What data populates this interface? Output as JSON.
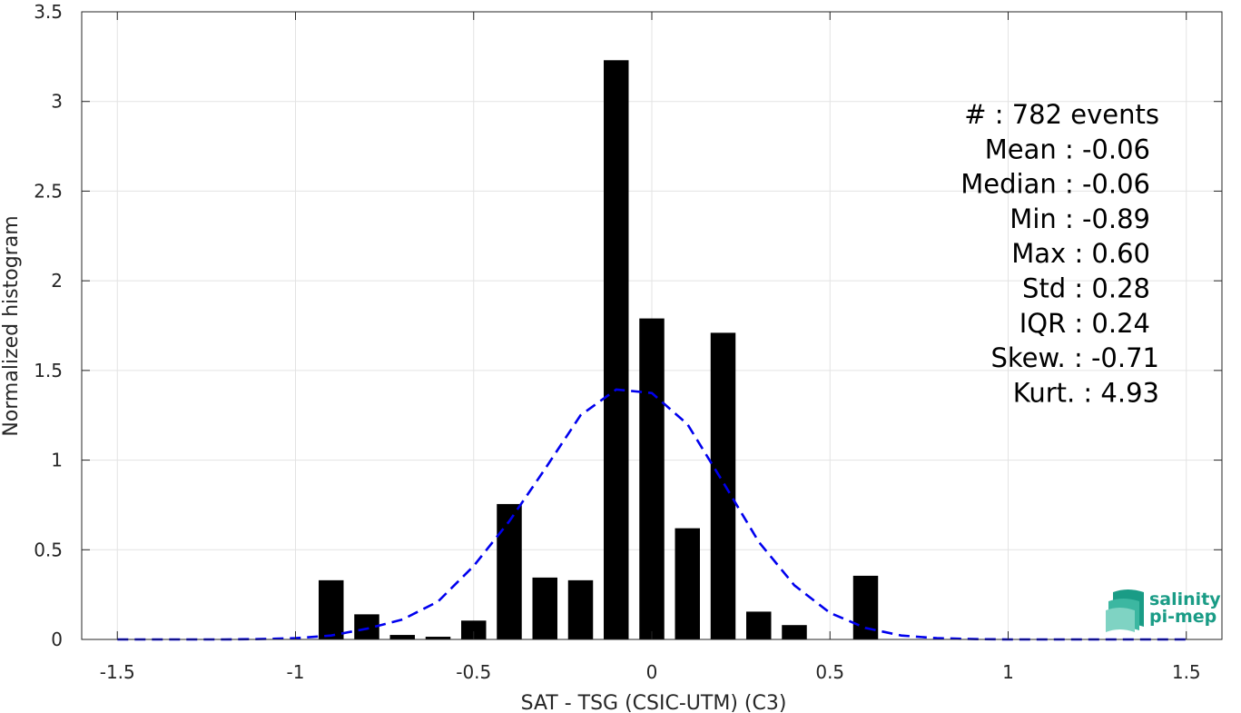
{
  "chart_data": {
    "type": "bar",
    "xlabel": "SAT - TSG (CSIC-UTM) (C3)",
    "ylabel": "Normalized histogram",
    "xlim": [
      -1.6,
      1.6
    ],
    "ylim": [
      0,
      3.5
    ],
    "xticks": [
      -1.5,
      -1,
      -0.5,
      0,
      0.5,
      1,
      1.5
    ],
    "xtick_labels": [
      "-1.5",
      "-1",
      "-0.5",
      "0",
      "0.5",
      "1",
      "1.5"
    ],
    "yticks": [
      0,
      0.5,
      1,
      1.5,
      2,
      2.5,
      3,
      3.5
    ],
    "ytick_labels": [
      "0",
      "0.5",
      "1",
      "1.5",
      "2",
      "2.5",
      "3",
      "3.5"
    ],
    "grid": true,
    "bar_width": 0.07,
    "bars": {
      "x": [
        -0.9,
        -0.8,
        -0.7,
        -0.6,
        -0.5,
        -0.4,
        -0.3,
        -0.2,
        -0.1,
        0.0,
        0.1,
        0.2,
        0.3,
        0.4,
        0.6
      ],
      "values": [
        0.33,
        0.14,
        0.025,
        0.015,
        0.105,
        0.755,
        0.345,
        0.33,
        3.23,
        1.79,
        0.62,
        1.71,
        0.155,
        0.08,
        0.355
      ],
      "color": "#000000"
    },
    "fit_curve": {
      "style": "dashed",
      "color": "#0000ee",
      "x": [
        -1.5,
        -1.4,
        -1.3,
        -1.2,
        -1.1,
        -1.0,
        -0.9,
        -0.8,
        -0.7,
        -0.6,
        -0.5,
        -0.4,
        -0.3,
        -0.2,
        -0.1,
        0.0,
        0.1,
        0.2,
        0.3,
        0.4,
        0.5,
        0.6,
        0.7,
        0.8,
        0.9,
        1.0,
        1.1,
        1.2,
        1.3,
        1.4,
        1.5
      ],
      "y": [
        0.0,
        0.0,
        0.0,
        0.0,
        0.002,
        0.007,
        0.022,
        0.06,
        0.111,
        0.211,
        0.41,
        0.659,
        0.95,
        1.25,
        1.394,
        1.374,
        1.2,
        0.877,
        0.544,
        0.302,
        0.148,
        0.064,
        0.022,
        0.007,
        0.002,
        0.0,
        0.0,
        0.0,
        0.0,
        0.0,
        0.0
      ]
    },
    "stats": [
      {
        "label": "#  : 782 events"
      },
      {
        "label": "Mean : -0.06"
      },
      {
        "label": "Median : -0.06"
      },
      {
        "label": "Min : -0.89"
      },
      {
        "label": "Max : 0.60"
      },
      {
        "label": "Std : 0.28"
      },
      {
        "label": "IQR : 0.24"
      },
      {
        "label": "Skew. : -0.71"
      },
      {
        "label": "Kurt. : 4.93"
      }
    ]
  },
  "logo": {
    "line1": "salinity",
    "line2": "pi-mep",
    "color": "#1a9c86"
  }
}
